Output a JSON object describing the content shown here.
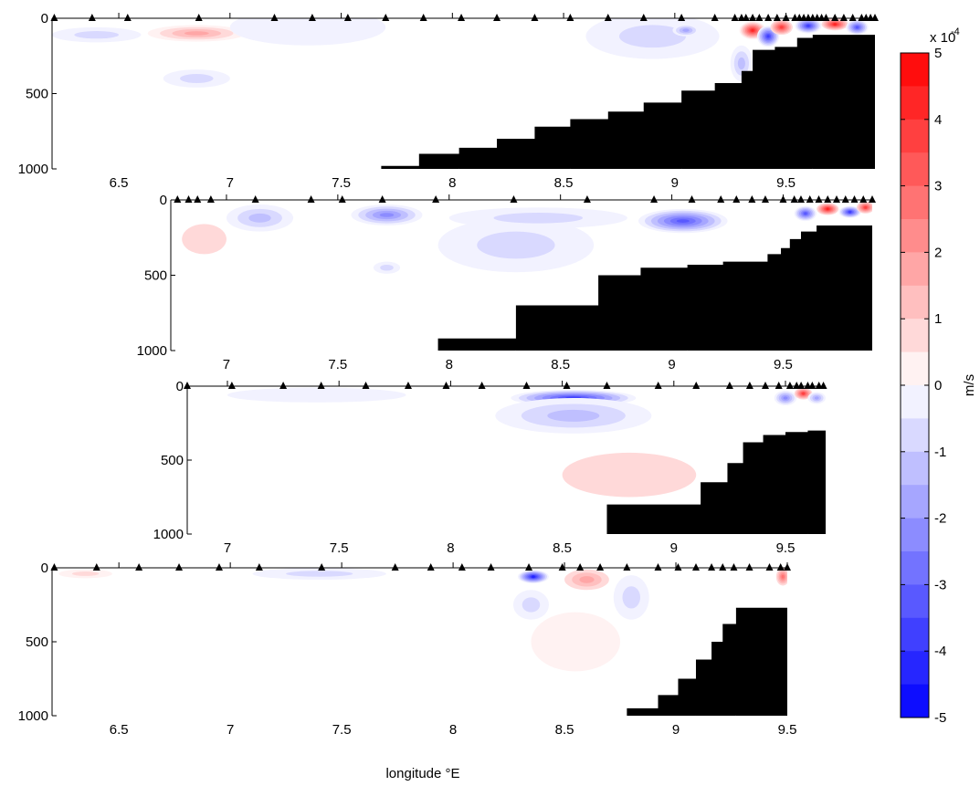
{
  "chart_data": {
    "type": "heatmap",
    "xlabel": "longitude °E",
    "colorbar": {
      "label": "m/s",
      "multiplier": "x 10",
      "exponent": "-4",
      "vmin": -5,
      "vmax": 5,
      "ticks": [
        "5",
        "4",
        "3",
        "2",
        "1",
        "0",
        "-1",
        "-2",
        "-3",
        "-4",
        "-5"
      ],
      "levels": 20,
      "neg_color": "#0000ff",
      "mid_color": "#ffffff",
      "pos_color": "#ff0000"
    },
    "colors": {
      "bathymetry": "#000000",
      "station_marker": "#000000"
    },
    "panels": [
      {
        "xlim": [
          6.2,
          9.9
        ],
        "ylim": [
          0,
          1000
        ],
        "xticks": [
          "6.5",
          "7",
          "7.5",
          "8",
          "8.5",
          "9",
          "9.5"
        ],
        "xtick_values": [
          6.5,
          7,
          7.5,
          8,
          8.5,
          9,
          9.5
        ],
        "yticks": [
          "0",
          "500",
          "1000"
        ],
        "ytick_values": [
          0,
          500,
          1000
        ],
        "stations": [
          6.21,
          6.38,
          6.54,
          6.86,
          7.2,
          7.37,
          7.53,
          7.7,
          7.87,
          8.04,
          8.2,
          8.37,
          8.53,
          8.7,
          8.86,
          9.03,
          9.18,
          9.27,
          9.3,
          9.32,
          9.35,
          9.38,
          9.42,
          9.46,
          9.5,
          9.54,
          9.56,
          9.58,
          9.6,
          9.62,
          9.64,
          9.66,
          9.68,
          9.72,
          9.76,
          9.8,
          9.84,
          9.86,
          9.88,
          9.9
        ],
        "bathymetry": [
          [
            7.68,
            980
          ],
          [
            7.85,
            900
          ],
          [
            8.03,
            860
          ],
          [
            8.2,
            800
          ],
          [
            8.37,
            720
          ],
          [
            8.53,
            670
          ],
          [
            8.7,
            620
          ],
          [
            8.86,
            560
          ],
          [
            9.03,
            480
          ],
          [
            9.18,
            430
          ],
          [
            9.3,
            350
          ],
          [
            9.35,
            210
          ],
          [
            9.45,
            190
          ],
          [
            9.55,
            130
          ],
          [
            9.62,
            110
          ],
          [
            9.9,
            110
          ]
        ],
        "anomalies": [
          {
            "x": 6.85,
            "y": 100,
            "value": 1.6,
            "sx": 0.22,
            "sy": 55
          },
          {
            "x": 6.85,
            "y": 400,
            "value": -0.7,
            "sx": 0.15,
            "sy": 60
          },
          {
            "x": 6.4,
            "y": 110,
            "value": -0.8,
            "sx": 0.2,
            "sy": 50
          },
          {
            "x": 7.35,
            "y": 60,
            "value": -0.5,
            "sx": 0.35,
            "sy": 120
          },
          {
            "x": 8.9,
            "y": 120,
            "value": -0.6,
            "sx": 0.3,
            "sy": 150
          },
          {
            "x": 9.05,
            "y": 80,
            "value": -2.0,
            "sx": 0.06,
            "sy": 40
          },
          {
            "x": 9.35,
            "y": 80,
            "value": 4.2,
            "sx": 0.06,
            "sy": 60
          },
          {
            "x": 9.42,
            "y": 120,
            "value": -4.0,
            "sx": 0.05,
            "sy": 70
          },
          {
            "x": 9.48,
            "y": 60,
            "value": 3.5,
            "sx": 0.05,
            "sy": 50
          },
          {
            "x": 9.6,
            "y": 50,
            "value": -3.8,
            "sx": 0.06,
            "sy": 50
          },
          {
            "x": 9.72,
            "y": 40,
            "value": 4.0,
            "sx": 0.06,
            "sy": 40
          },
          {
            "x": 9.82,
            "y": 60,
            "value": -3.5,
            "sx": 0.05,
            "sy": 50
          },
          {
            "x": 9.3,
            "y": 300,
            "value": -1.2,
            "sx": 0.05,
            "sy": 120
          }
        ]
      },
      {
        "xlim": [
          6.75,
          9.9
        ],
        "ylim": [
          0,
          1000
        ],
        "xticks": [
          "7",
          "7.5",
          "8",
          "8.5",
          "9",
          "9.5"
        ],
        "xtick_values": [
          7,
          7.5,
          8,
          8.5,
          9,
          9.5
        ],
        "yticks": [
          "0",
          "500",
          "1000"
        ],
        "ytick_values": [
          0,
          500,
          1000
        ],
        "stations": [
          6.78,
          6.83,
          6.87,
          6.93,
          7.13,
          7.38,
          7.52,
          7.7,
          7.94,
          8.29,
          8.62,
          8.92,
          9.09,
          9.22,
          9.29,
          9.36,
          9.42,
          9.5,
          9.55,
          9.58,
          9.62,
          9.66,
          9.7,
          9.74,
          9.78,
          9.82,
          9.86,
          9.9
        ],
        "bathymetry": [
          [
            7.95,
            920
          ],
          [
            8.3,
            700
          ],
          [
            8.67,
            500
          ],
          [
            8.86,
            450
          ],
          [
            9.07,
            430
          ],
          [
            9.23,
            410
          ],
          [
            9.43,
            360
          ],
          [
            9.49,
            320
          ],
          [
            9.53,
            260
          ],
          [
            9.58,
            210
          ],
          [
            9.65,
            170
          ],
          [
            9.9,
            120
          ]
        ],
        "anomalies": [
          {
            "x": 7.15,
            "y": 120,
            "value": -1.5,
            "sx": 0.15,
            "sy": 90
          },
          {
            "x": 7.72,
            "y": 100,
            "value": -2.5,
            "sx": 0.16,
            "sy": 70
          },
          {
            "x": 7.72,
            "y": 450,
            "value": -0.7,
            "sx": 0.06,
            "sy": 40
          },
          {
            "x": 9.05,
            "y": 140,
            "value": -3.2,
            "sx": 0.2,
            "sy": 80
          },
          {
            "x": 8.3,
            "y": 300,
            "value": -0.6,
            "sx": 0.35,
            "sy": 180
          },
          {
            "x": 8.4,
            "y": 120,
            "value": -0.9,
            "sx": 0.4,
            "sy": 70
          },
          {
            "x": 6.9,
            "y": 260,
            "value": 0.5,
            "sx": 0.1,
            "sy": 100
          },
          {
            "x": 9.6,
            "y": 90,
            "value": -3.5,
            "sx": 0.05,
            "sy": 50
          },
          {
            "x": 9.7,
            "y": 60,
            "value": 4.0,
            "sx": 0.05,
            "sy": 40
          },
          {
            "x": 9.8,
            "y": 80,
            "value": -4.0,
            "sx": 0.05,
            "sy": 40
          },
          {
            "x": 9.87,
            "y": 50,
            "value": 3.5,
            "sx": 0.04,
            "sy": 40
          }
        ]
      },
      {
        "xlim": [
          6.82,
          9.68
        ],
        "ylim": [
          0,
          1000
        ],
        "xticks": [
          "7",
          "7.5",
          "8",
          "8.5",
          "9",
          "9.5"
        ],
        "xtick_values": [
          7,
          7.5,
          8,
          8.5,
          9,
          9.5
        ],
        "yticks": [
          "0",
          "500",
          "1000"
        ],
        "ytick_values": [
          0,
          500,
          1000
        ],
        "stations": [
          6.82,
          7.02,
          7.25,
          7.42,
          7.62,
          7.81,
          7.98,
          8.14,
          8.34,
          8.52,
          8.7,
          8.93,
          9.1,
          9.25,
          9.34,
          9.41,
          9.47,
          9.52,
          9.55,
          9.57,
          9.6,
          9.62,
          9.65,
          9.67
        ],
        "bathymetry": [
          [
            8.7,
            800
          ],
          [
            9.12,
            650
          ],
          [
            9.24,
            520
          ],
          [
            9.31,
            380
          ],
          [
            9.4,
            330
          ],
          [
            9.5,
            310
          ],
          [
            9.6,
            300
          ],
          [
            9.68,
            300
          ]
        ],
        "anomalies": [
          {
            "x": 8.55,
            "y": 80,
            "value": -4.0,
            "sx": 0.28,
            "sy": 55
          },
          {
            "x": 8.55,
            "y": 200,
            "value": -1.2,
            "sx": 0.35,
            "sy": 120
          },
          {
            "x": 7.4,
            "y": 60,
            "value": -0.4,
            "sx": 0.4,
            "sy": 50
          },
          {
            "x": 8.8,
            "y": 600,
            "value": 0.5,
            "sx": 0.3,
            "sy": 150
          },
          {
            "x": 9.5,
            "y": 80,
            "value": -2.5,
            "sx": 0.05,
            "sy": 50
          },
          {
            "x": 9.58,
            "y": 50,
            "value": 3.5,
            "sx": 0.04,
            "sy": 40
          },
          {
            "x": 9.64,
            "y": 80,
            "value": -2.0,
            "sx": 0.04,
            "sy": 40
          }
        ]
      },
      {
        "xlim": [
          6.2,
          9.5
        ],
        "ylim": [
          0,
          1000
        ],
        "xticks": [
          "6.5",
          "7",
          "7.5",
          "8",
          "8.5",
          "9",
          "9.5"
        ],
        "xtick_values": [
          6.5,
          7,
          7.5,
          8,
          8.5,
          9,
          9.5
        ],
        "yticks": [
          "0",
          "500",
          "1000"
        ],
        "ytick_values": [
          0,
          500,
          1000
        ],
        "stations": [
          6.21,
          6.4,
          6.59,
          6.77,
          6.95,
          7.13,
          7.41,
          7.74,
          7.9,
          8.04,
          8.17,
          8.34,
          8.49,
          8.57,
          8.66,
          8.78,
          8.92,
          9.01,
          9.09,
          9.16,
          9.21,
          9.26,
          9.33,
          9.42,
          9.47,
          9.5
        ],
        "bathymetry": [
          [
            8.78,
            950
          ],
          [
            8.92,
            860
          ],
          [
            9.01,
            750
          ],
          [
            9.09,
            620
          ],
          [
            9.16,
            500
          ],
          [
            9.21,
            380
          ],
          [
            9.27,
            270
          ],
          [
            9.5,
            260
          ]
        ],
        "anomalies": [
          {
            "x": 8.36,
            "y": 60,
            "value": -4.2,
            "sx": 0.07,
            "sy": 45
          },
          {
            "x": 8.6,
            "y": 80,
            "value": 1.5,
            "sx": 0.1,
            "sy": 70
          },
          {
            "x": 6.35,
            "y": 40,
            "value": 0.8,
            "sx": 0.12,
            "sy": 30
          },
          {
            "x": 7.4,
            "y": 40,
            "value": -0.6,
            "sx": 0.3,
            "sy": 40
          },
          {
            "x": 8.35,
            "y": 250,
            "value": -0.8,
            "sx": 0.08,
            "sy": 100
          },
          {
            "x": 8.8,
            "y": 200,
            "value": -0.6,
            "sx": 0.08,
            "sy": 150
          },
          {
            "x": 8.55,
            "y": 500,
            "value": 0.4,
            "sx": 0.2,
            "sy": 200
          },
          {
            "x": 9.48,
            "y": 60,
            "value": 2.5,
            "sx": 0.03,
            "sy": 60
          }
        ]
      }
    ]
  }
}
